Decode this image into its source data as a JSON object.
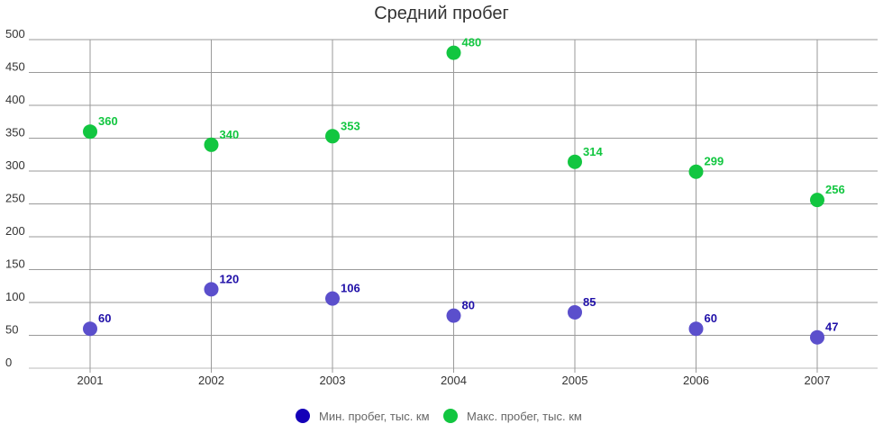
{
  "chart_data": {
    "type": "scatter",
    "title": "Средний пробег",
    "xlabel": "",
    "ylabel": "",
    "categories": [
      "2001",
      "2002",
      "2003",
      "2004",
      "2005",
      "2006",
      "2007"
    ],
    "ylim": [
      0,
      500
    ],
    "yticks": [
      "0",
      "50",
      "100",
      "150",
      "200",
      "250",
      "300",
      "350",
      "400",
      "450",
      "500"
    ],
    "grid": true,
    "legend_position": "bottom",
    "series": [
      {
        "name": "Мин. пробег, тыс. км",
        "values": [
          60,
          120,
          106,
          80,
          85,
          60,
          47
        ],
        "labels": [
          "60",
          "120",
          "106",
          "80",
          "85",
          "60",
          "47"
        ],
        "color": "#5b4fcc",
        "label_color": "#1f0fa8",
        "legend_color": "#1400b8"
      },
      {
        "name": "Макс. пробег, тыс. км",
        "values": [
          360,
          340,
          353,
          480,
          314,
          299,
          256
        ],
        "labels": [
          "360",
          "340",
          "353",
          "480",
          "314",
          "299",
          "256"
        ],
        "color": "#12c640",
        "label_color": "#12c640",
        "legend_color": "#12c640"
      }
    ]
  }
}
